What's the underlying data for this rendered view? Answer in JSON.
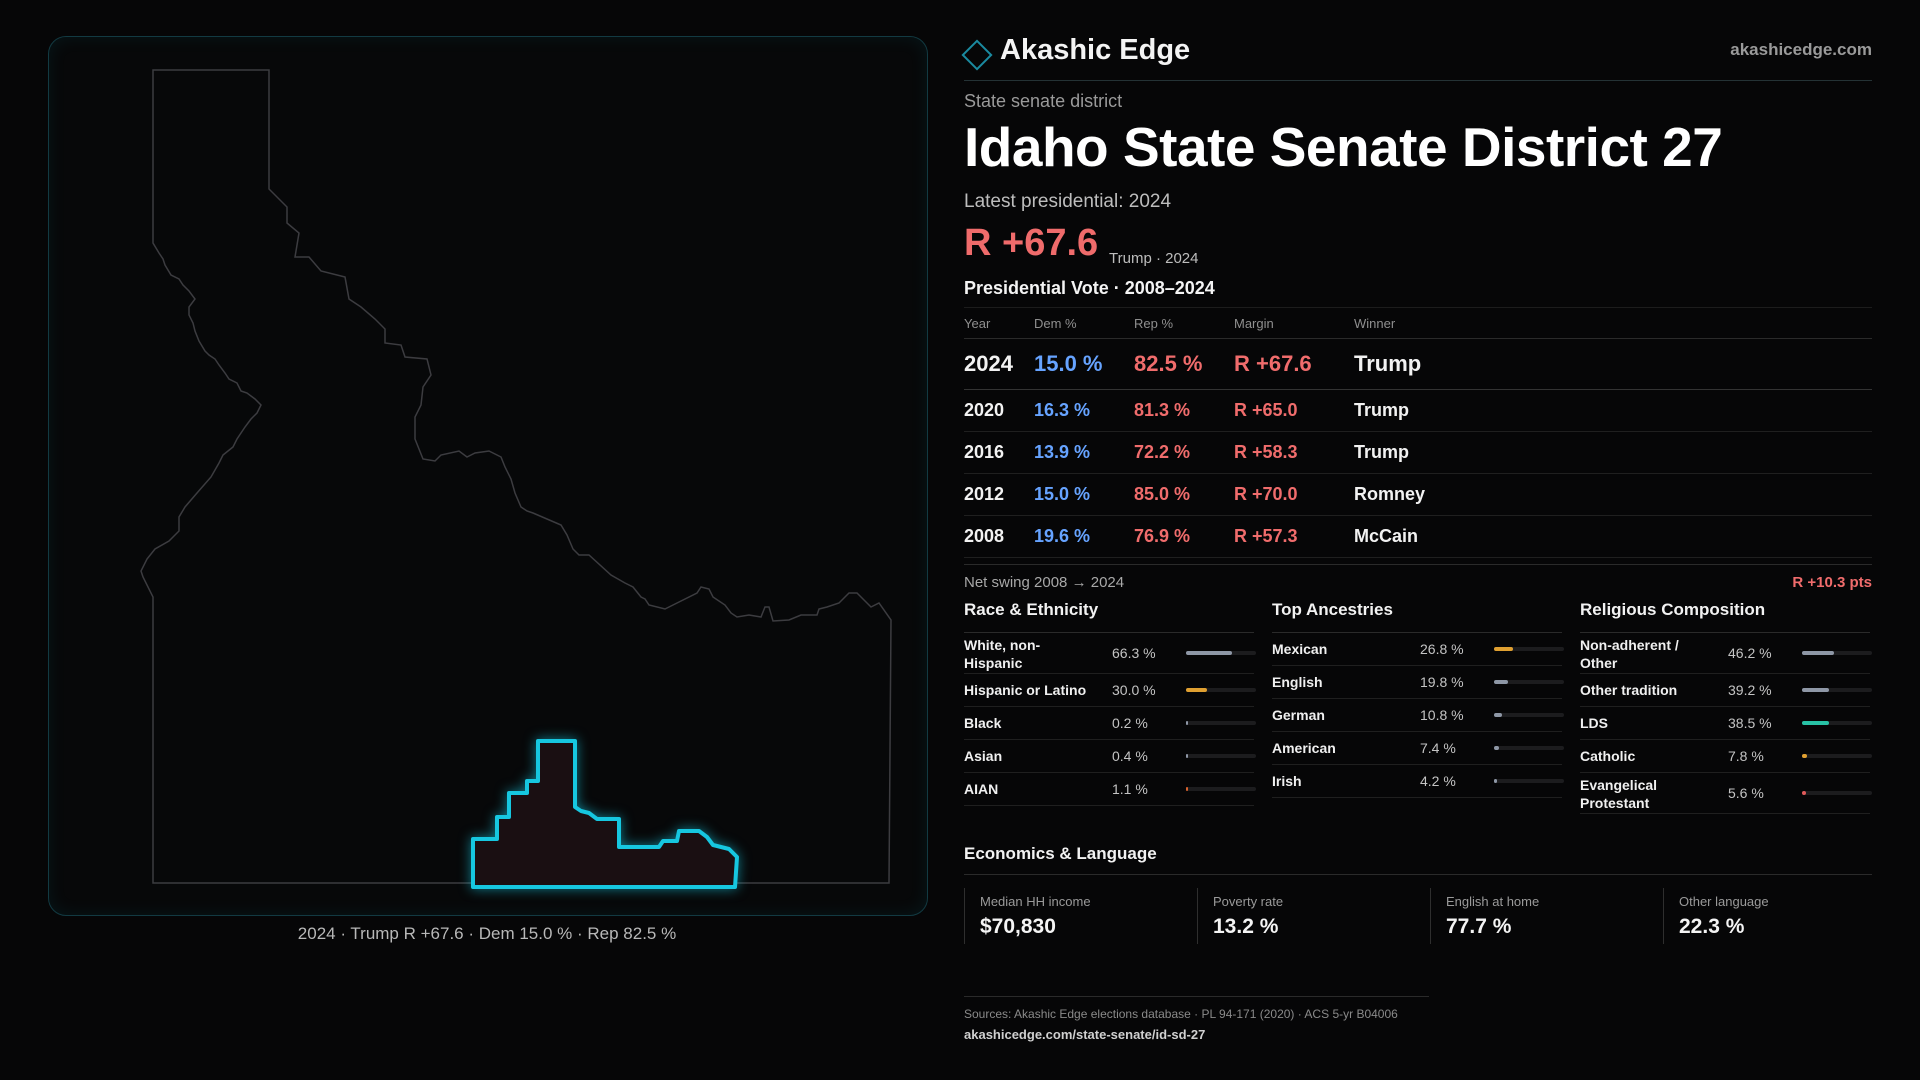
{
  "brand": {
    "name": "Akashic Edge",
    "url": "akashicedge.com",
    "logo": "diamond-logo"
  },
  "district": {
    "kind": "State senate district",
    "title": "Idaho State Senate District 27",
    "latest_label": "Latest presidential: 2024",
    "headline_margin": "R +67.6",
    "headline_sub": "Trump · 2024"
  },
  "map": {
    "caption": "2024 · Trump R +67.6 · Dem 15.0 % · Rep 82.5 %",
    "highlight_color": "#16c7e0"
  },
  "presidential": {
    "title": "Presidential Vote · 2008–2024",
    "headers": {
      "year": "Year",
      "dem": "Dem %",
      "rep": "Rep %",
      "margin": "Margin",
      "winner": "Winner"
    },
    "rows": [
      {
        "year": "2024",
        "dem": "15.0 %",
        "rep": "82.5 %",
        "margin": "R +67.6",
        "winner": "Trump"
      },
      {
        "year": "2020",
        "dem": "16.3 %",
        "rep": "81.3 %",
        "margin": "R +65.0",
        "winner": "Trump"
      },
      {
        "year": "2016",
        "dem": "13.9 %",
        "rep": "72.2 %",
        "margin": "R +58.3",
        "winner": "Trump"
      },
      {
        "year": "2012",
        "dem": "15.0 %",
        "rep": "85.0 %",
        "margin": "R +70.0",
        "winner": "Romney"
      },
      {
        "year": "2008",
        "dem": "19.6 %",
        "rep": "76.9 %",
        "margin": "R +57.3",
        "winner": "McCain"
      }
    ],
    "swing_label": "Net swing 2008 → 2024",
    "swing_value": "R +10.3 pts"
  },
  "race": {
    "title": "Race & Ethnicity",
    "items": [
      {
        "label": "White, non-Hispanic",
        "value": "66.3 %",
        "share": 0.663,
        "color": "#8e97a6"
      },
      {
        "label": "Hispanic or Latino",
        "value": "30.0 %",
        "share": 0.3,
        "color": "#e0a031"
      },
      {
        "label": "Black",
        "value": "0.2 %",
        "share": 0.002,
        "color": "#8e97a6"
      },
      {
        "label": "Asian",
        "value": "0.4 %",
        "share": 0.004,
        "color": "#8e97a6"
      },
      {
        "label": "AIAN",
        "value": "1.1 %",
        "share": 0.011,
        "color": "#d9632e"
      }
    ]
  },
  "ancestry": {
    "title": "Top Ancestries",
    "items": [
      {
        "label": "Mexican",
        "value": "26.8 %",
        "share": 0.268,
        "color": "#e0a031"
      },
      {
        "label": "English",
        "value": "19.8 %",
        "share": 0.198,
        "color": "#8e97a6"
      },
      {
        "label": "German",
        "value": "10.8 %",
        "share": 0.108,
        "color": "#8e97a6"
      },
      {
        "label": "American",
        "value": "7.4 %",
        "share": 0.074,
        "color": "#8e97a6"
      },
      {
        "label": "Irish",
        "value": "4.2 %",
        "share": 0.042,
        "color": "#8e97a6"
      }
    ]
  },
  "religion": {
    "title": "Religious Composition",
    "items": [
      {
        "label": "Non-adherent / Other",
        "value": "46.2 %",
        "share": 0.462,
        "color": "#8e97a6"
      },
      {
        "label": "Other tradition",
        "value": "39.2 %",
        "share": 0.392,
        "color": "#8e97a6"
      },
      {
        "label": "LDS",
        "value": "38.5 %",
        "share": 0.385,
        "color": "#28c2a6"
      },
      {
        "label": "Catholic",
        "value": "7.8 %",
        "share": 0.078,
        "color": "#e0a031"
      },
      {
        "label": "Evangelical Protestant",
        "value": "5.6 %",
        "share": 0.056,
        "color": "#e05a5a"
      }
    ]
  },
  "economics": {
    "title": "Economics & Language",
    "cells": [
      {
        "label": "Median HH income",
        "value": "$70,830"
      },
      {
        "label": "Poverty rate",
        "value": "13.2 %"
      },
      {
        "label": "English at home",
        "value": "77.7 %"
      },
      {
        "label": "Other language",
        "value": "22.3 %"
      }
    ]
  },
  "sources": {
    "text": "Sources: Akashic Edge elections database · PL 94-171 (2020) · ACS 5-yr B04006",
    "url": "akashicedge.com/state-senate/id-sd-27"
  }
}
